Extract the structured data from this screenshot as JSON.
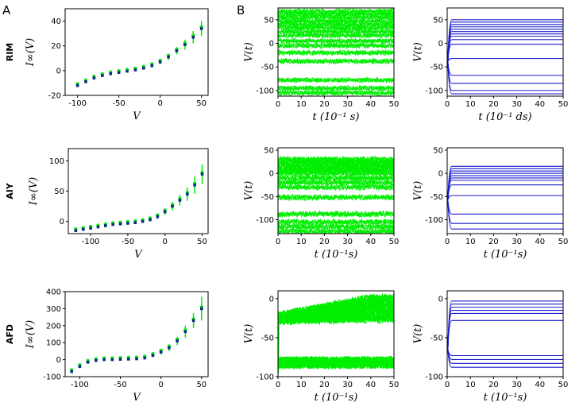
{
  "panel_labels": [
    "A",
    "B"
  ],
  "colors": {
    "green": "#00ee00",
    "blue": "#1a1acc",
    "darkblue": "#0a2a8a"
  },
  "chart_data": [
    {
      "id": "rim-iv",
      "type": "scatter",
      "row_label": "RIM",
      "ylabel": "I∞(V)",
      "xlabel": "V",
      "xlim": [
        -115,
        58
      ],
      "ylim": [
        -20,
        50
      ],
      "xticks": [
        -100,
        -50,
        0,
        50
      ],
      "xtick_labels": [
        "-100",
        "-50",
        "0",
        "50"
      ],
      "yticks": [
        -20,
        0,
        20,
        40
      ],
      "ytick_labels": [
        "-20",
        "0",
        "20",
        "40"
      ],
      "x": [
        -100,
        -90,
        -80,
        -70,
        -60,
        -50,
        -40,
        -30,
        -20,
        -10,
        0,
        10,
        20,
        30,
        40,
        50
      ],
      "y": [
        -12,
        -9,
        -6,
        -4,
        -2.5,
        -1.5,
        -0.5,
        0.5,
        2,
        4,
        7,
        11,
        16,
        21,
        27,
        34
      ],
      "err": [
        1.5,
        1,
        1,
        0.8,
        0.8,
        0.8,
        0.8,
        0.8,
        1,
        1.5,
        2,
        2.5,
        3,
        4,
        5,
        6
      ]
    },
    {
      "id": "rim-sim",
      "type": "line",
      "ylabel": "V(t)",
      "xlabel": "t (10⁻¹ s)",
      "xlim": [
        0,
        50
      ],
      "ylim": [
        -112,
        75
      ],
      "xticks": [
        0,
        10,
        20,
        30,
        40,
        50
      ],
      "xtick_labels": [
        "0",
        "10",
        "20",
        "30",
        "40",
        "50"
      ],
      "yticks": [
        -100,
        -50,
        0,
        50
      ],
      "ytick_labels": [
        "-100",
        "-50",
        "0",
        "50"
      ],
      "levels": [
        68,
        62,
        55,
        47,
        40,
        33,
        25,
        17,
        5,
        -5,
        -20,
        -38,
        -78,
        -95,
        -105
      ],
      "noise": 4
    },
    {
      "id": "rim-model",
      "type": "line",
      "ylabel": "V(t)",
      "xlabel": "t (10⁻¹ ds)",
      "xlim": [
        0,
        50
      ],
      "ylim": [
        -112,
        75
      ],
      "xticks": [
        0,
        10,
        20,
        30,
        40,
        50
      ],
      "xtick_labels": [
        "0",
        "10",
        "20",
        "30",
        "40",
        "50"
      ],
      "yticks": [
        -100,
        -50,
        0,
        50
      ],
      "ytick_labels": [
        "-100",
        "-50",
        "0",
        "50"
      ],
      "levels": [
        50,
        45,
        40,
        35,
        30,
        25,
        20,
        15,
        8,
        -2,
        -32,
        -68,
        -85,
        -100,
        -107
      ]
    },
    {
      "id": "aiy-iv",
      "type": "scatter",
      "row_label": "AIY",
      "ylabel": "I∞(V)",
      "xlabel": "V",
      "xlim": [
        -130,
        58
      ],
      "ylim": [
        -20,
        120
      ],
      "xticks": [
        -100,
        -50,
        0,
        50
      ],
      "xtick_labels": [
        "-100",
        "-50",
        "0",
        "50"
      ],
      "yticks": [
        0,
        50,
        100
      ],
      "ytick_labels": [
        "0",
        "50",
        "100"
      ],
      "x": [
        -120,
        -110,
        -100,
        -90,
        -80,
        -70,
        -60,
        -50,
        -40,
        -30,
        -20,
        -10,
        0,
        10,
        20,
        30,
        40,
        50
      ],
      "y": [
        -15,
        -13,
        -11,
        -9,
        -7,
        -5,
        -4,
        -3,
        -2,
        0,
        3,
        8,
        16,
        25,
        35,
        45,
        60,
        78
      ],
      "err": [
        1,
        1,
        1,
        1,
        1,
        1,
        1,
        1,
        1.5,
        2,
        3,
        4,
        5,
        7,
        9,
        11,
        14,
        16
      ]
    },
    {
      "id": "aiy-sim",
      "type": "line",
      "ylabel": "V(t)",
      "xlabel": "t (10⁻¹s)",
      "xlim": [
        0,
        50
      ],
      "ylim": [
        -130,
        55
      ],
      "xticks": [
        0,
        10,
        20,
        30,
        40,
        50
      ],
      "xtick_labels": [
        "0",
        "10",
        "20",
        "30",
        "40",
        "50"
      ],
      "yticks": [
        -100,
        -50,
        0,
        50
      ],
      "ytick_labels": [
        "-100",
        "-50",
        "0",
        "50"
      ],
      "levels": [
        30,
        25,
        20,
        15,
        10,
        5,
        0,
        -10,
        -20,
        -30,
        -52,
        -88,
        -105,
        -115,
        -125
      ],
      "noise": 5
    },
    {
      "id": "aiy-model",
      "type": "line",
      "ylabel": "V(t)",
      "xlabel": "t (10⁻¹s)",
      "xlim": [
        0,
        50
      ],
      "ylim": [
        -130,
        55
      ],
      "xticks": [
        0,
        10,
        20,
        30,
        40,
        50
      ],
      "xtick_labels": [
        "0",
        "10",
        "20",
        "30",
        "40",
        "50"
      ],
      "yticks": [
        -100,
        -50,
        0,
        50
      ],
      "ytick_labels": [
        "-100",
        "-50",
        "0",
        "50"
      ],
      "levels": [
        15,
        10,
        5,
        0,
        -5,
        -10,
        -15,
        -25,
        -48,
        -88,
        -108,
        -120
      ]
    },
    {
      "id": "afd-iv",
      "type": "scatter",
      "row_label": "AFD",
      "ylabel": "I∞(V)",
      "xlabel": "V",
      "xlim": [
        -118,
        58
      ],
      "ylim": [
        -100,
        400
      ],
      "xticks": [
        -100,
        -50,
        0,
        50
      ],
      "xtick_labels": [
        "-100",
        "-50",
        "0",
        "50"
      ],
      "yticks": [
        -100,
        0,
        100,
        200,
        300,
        400
      ],
      "ytick_labels": [
        "-100",
        "0",
        "100",
        "200",
        "300",
        "400"
      ],
      "x": [
        -110,
        -100,
        -90,
        -80,
        -70,
        -60,
        -50,
        -40,
        -30,
        -20,
        -10,
        0,
        10,
        20,
        30,
        40,
        50
      ],
      "y": [
        -70,
        -40,
        -15,
        -5,
        0,
        0,
        2,
        3,
        5,
        10,
        25,
        45,
        70,
        110,
        165,
        230,
        300
      ],
      "err": [
        5,
        10,
        8,
        5,
        5,
        5,
        5,
        5,
        5,
        5,
        10,
        15,
        20,
        25,
        35,
        45,
        70
      ]
    },
    {
      "id": "afd-sim",
      "type": "band",
      "ylabel": "V(t)",
      "xlabel": "t (10⁻¹s)",
      "xlim": [
        0,
        50
      ],
      "ylim": [
        -100,
        10
      ],
      "xticks": [
        0,
        10,
        20,
        30,
        40,
        50
      ],
      "xtick_labels": [
        "0",
        "10",
        "20",
        "30",
        "40",
        "50"
      ],
      "yticks": [
        -100,
        -50,
        0
      ],
      "ytick_labels": [
        "-100",
        "-50",
        "0"
      ],
      "band_upper_start": -20,
      "band_upper_end": 3,
      "band_lower_start": -30,
      "band_lower_end": -28,
      "lower_band_center": -82,
      "lower_band_halfwidth": 8
    },
    {
      "id": "afd-model",
      "type": "line",
      "ylabel": "V(t)",
      "xlabel": "t (10⁻¹s)",
      "xlim": [
        0,
        50
      ],
      "ylim": [
        -100,
        10
      ],
      "xticks": [
        0,
        10,
        20,
        30,
        40,
        50
      ],
      "xtick_labels": [
        "0",
        "10",
        "20",
        "30",
        "40",
        "50"
      ],
      "yticks": [
        -100,
        -50,
        0
      ],
      "ytick_labels": [
        "-100",
        "-50",
        "0"
      ],
      "levels": [
        -3,
        -7,
        -11,
        -15,
        -19,
        -28,
        -73,
        -78,
        -83,
        -88
      ]
    }
  ]
}
